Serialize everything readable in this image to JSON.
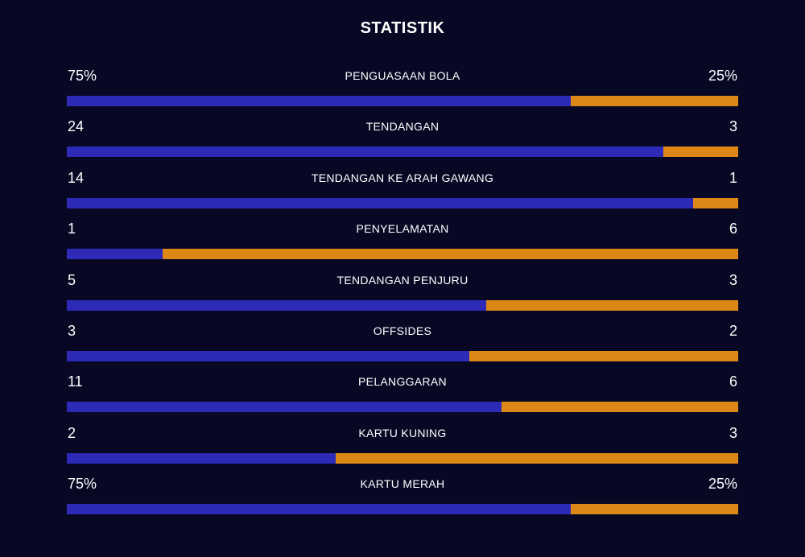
{
  "page": {
    "title": "STATISTIK"
  },
  "colors": {
    "background": "#080825",
    "home_bar": "#2c2ab6",
    "away_bar": "#dd8716",
    "text": "#ffffff"
  },
  "stats": [
    {
      "label": "PENGUASAAN BOLA",
      "home": "75%",
      "away": "25%",
      "home_share": 0.75
    },
    {
      "label": "TENDANGAN",
      "home": "24",
      "away": "3",
      "home_share": 0.889
    },
    {
      "label": "TENDANGAN KE ARAH GAWANG",
      "home": "14",
      "away": "1",
      "home_share": 0.933
    },
    {
      "label": "PENYELAMATAN",
      "home": "1",
      "away": "6",
      "home_share": 0.143
    },
    {
      "label": "TENDANGAN PENJURU",
      "home": "5",
      "away": "3",
      "home_share": 0.625
    },
    {
      "label": "OFFSIDES",
      "home": "3",
      "away": "2",
      "home_share": 0.6
    },
    {
      "label": "PELANGGARAN",
      "home": "11",
      "away": "6",
      "home_share": 0.647
    },
    {
      "label": "KARTU KUNING",
      "home": "2",
      "away": "3",
      "home_share": 0.4
    },
    {
      "label": "KARTU MERAH",
      "home": "75%",
      "away": "25%",
      "home_share": 0.75
    }
  ]
}
